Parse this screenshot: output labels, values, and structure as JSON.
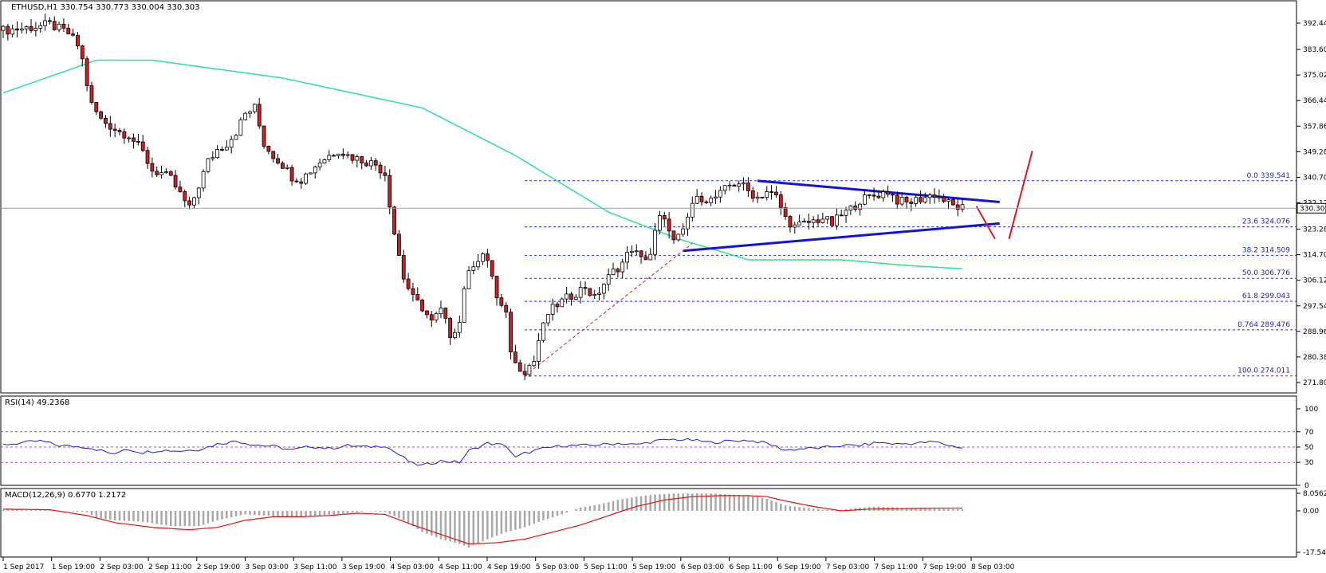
{
  "chart_data": [
    {
      "type": "candlestick",
      "title": "ETHUSD,H1  330.754 330.773 330.004 330.303",
      "last_price": "330.303",
      "ylim": [
        271.8,
        397.0
      ],
      "yticks": [
        "392.440",
        "383.600",
        "375.020",
        "366.440",
        "357.860",
        "349.280",
        "340.700",
        "332.120",
        "323.280",
        "314.700",
        "306.120",
        "297.540",
        "288.960",
        "280.380",
        "271.800"
      ],
      "xticks": [
        "1 Sep 2017",
        "1 Sep 19:00",
        "2 Sep 03:00",
        "2 Sep 11:00",
        "2 Sep 19:00",
        "3 Sep 03:00",
        "3 Sep 11:00",
        "3 Sep 19:00",
        "4 Sep 03:00",
        "4 Sep 11:00",
        "4 Sep 19:00",
        "5 Sep 03:00",
        "5 Sep 11:00",
        "5 Sep 19:00",
        "6 Sep 03:00",
        "6 Sep 11:00",
        "6 Sep 19:00",
        "7 Sep 03:00",
        "7 Sep 11:00",
        "7 Sep 19:00",
        "8 Sep 03:00"
      ],
      "fibonacci": [
        {
          "label": "0.0  339.541",
          "value": 339.541
        },
        {
          "label": "23.6  324.076",
          "value": 324.076
        },
        {
          "label": "38.2  314.509",
          "value": 314.509
        },
        {
          "label": "50.0  306.776",
          "value": 306.776
        },
        {
          "label": "61.8  299.043",
          "value": 299.043
        },
        {
          "label": "0.764  289.476",
          "value": 289.476
        },
        {
          "label": "100.0  274.011",
          "value": 274.011
        }
      ],
      "close_path": [
        [
          0,
          390
        ],
        [
          6,
          391
        ],
        [
          10,
          392
        ],
        [
          14,
          389
        ],
        [
          16,
          385
        ],
        [
          17,
          380
        ],
        [
          18,
          372
        ],
        [
          19,
          365
        ],
        [
          21,
          360
        ],
        [
          23,
          358
        ],
        [
          25,
          356
        ],
        [
          27,
          355
        ],
        [
          28,
          353
        ],
        [
          30,
          349
        ],
        [
          32,
          343
        ],
        [
          34,
          342
        ],
        [
          36,
          340
        ],
        [
          38,
          335
        ],
        [
          40,
          330
        ],
        [
          42,
          338
        ],
        [
          44,
          346
        ],
        [
          46,
          350
        ],
        [
          48,
          352
        ],
        [
          50,
          356
        ],
        [
          52,
          362
        ],
        [
          54,
          364
        ],
        [
          56,
          352
        ],
        [
          58,
          348
        ],
        [
          60,
          345
        ],
        [
          62,
          341
        ],
        [
          64,
          340
        ],
        [
          66,
          343
        ],
        [
          68,
          346
        ],
        [
          70,
          348
        ],
        [
          72,
          350
        ],
        [
          74,
          348
        ],
        [
          76,
          347
        ],
        [
          78,
          346
        ],
        [
          80,
          345
        ],
        [
          82,
          342
        ],
        [
          84,
          322
        ],
        [
          86,
          307
        ],
        [
          88,
          300
        ],
        [
          90,
          297
        ],
        [
          92,
          292
        ],
        [
          94,
          296
        ],
        [
          96,
          288
        ],
        [
          98,
          292
        ],
        [
          99,
          304
        ],
        [
          101,
          312
        ],
        [
          103,
          315
        ],
        [
          105,
          308
        ],
        [
          106,
          300
        ],
        [
          108,
          294
        ],
        [
          109,
          283
        ],
        [
          110,
          278
        ],
        [
          112,
          276
        ],
        [
          114,
          279
        ],
        [
          115,
          286
        ],
        [
          117,
          295
        ],
        [
          119,
          298
        ],
        [
          121,
          300
        ],
        [
          123,
          302
        ],
        [
          125,
          304
        ],
        [
          127,
          300
        ],
        [
          129,
          305
        ],
        [
          131,
          309
        ],
        [
          133,
          312
        ],
        [
          135,
          317
        ],
        [
          137,
          313
        ],
        [
          139,
          315
        ],
        [
          140,
          322
        ],
        [
          141,
          327
        ],
        [
          143,
          324
        ],
        [
          144,
          319
        ],
        [
          146,
          322
        ],
        [
          148,
          332
        ],
        [
          150,
          334
        ],
        [
          152,
          333
        ],
        [
          154,
          335
        ],
        [
          156,
          338
        ],
        [
          158,
          339
        ],
        [
          160,
          336
        ],
        [
          162,
          334
        ],
        [
          164,
          336
        ],
        [
          166,
          334
        ],
        [
          168,
          327
        ],
        [
          170,
          324
        ],
        [
          172,
          325
        ],
        [
          174,
          326
        ],
        [
          176,
          327
        ],
        [
          178,
          325
        ],
        [
          180,
          328
        ],
        [
          182,
          330
        ],
        [
          184,
          333
        ],
        [
          186,
          334
        ],
        [
          188,
          335
        ],
        [
          190,
          336
        ],
        [
          192,
          333
        ],
        [
          194,
          332
        ],
        [
          196,
          333
        ],
        [
          198,
          334
        ],
        [
          200,
          335
        ],
        [
          202,
          333
        ],
        [
          204,
          331
        ],
        [
          206,
          330.3
        ]
      ],
      "ema": [
        [
          0,
          369
        ],
        [
          20,
          380
        ],
        [
          32,
          380
        ],
        [
          60,
          374
        ],
        [
          90,
          364
        ],
        [
          110,
          348
        ],
        [
          130,
          329
        ],
        [
          145,
          320
        ],
        [
          160,
          313
        ],
        [
          180,
          313
        ],
        [
          195,
          311
        ],
        [
          206,
          310
        ]
      ],
      "trendlines": [
        {
          "from": [
            162,
            339.5
          ],
          "to": [
            214,
            332.4
          ]
        },
        {
          "from": [
            146,
            316.0
          ],
          "to": [
            214,
            325.2
          ]
        }
      ],
      "support_dashed": {
        "from": [
          112,
          274
        ],
        "to": [
          148,
          318.5
        ]
      },
      "red_arrows": [
        {
          "from": [
            209,
            331
          ],
          "to": [
            213,
            320
          ]
        },
        {
          "from": [
            216,
            320
          ],
          "to": [
            221,
            349.5
          ]
        }
      ]
    },
    {
      "type": "line",
      "title": "RSI(14) 49.2368",
      "ylim": [
        0,
        100
      ],
      "levels": [
        70,
        50,
        30
      ],
      "yticks": [
        "100",
        "70",
        "50",
        "30",
        "0"
      ],
      "values": [
        [
          0,
          53
        ],
        [
          8,
          58
        ],
        [
          12,
          52
        ],
        [
          18,
          50
        ],
        [
          22,
          44
        ],
        [
          24,
          40
        ],
        [
          26,
          48
        ],
        [
          30,
          43
        ],
        [
          34,
          46
        ],
        [
          38,
          45
        ],
        [
          42,
          47
        ],
        [
          46,
          54
        ],
        [
          50,
          58
        ],
        [
          54,
          53
        ],
        [
          58,
          51
        ],
        [
          62,
          46
        ],
        [
          66,
          51
        ],
        [
          70,
          48
        ],
        [
          74,
          52
        ],
        [
          78,
          50
        ],
        [
          82,
          52
        ],
        [
          86,
          36
        ],
        [
          88,
          28
        ],
        [
          90,
          26
        ],
        [
          94,
          32
        ],
        [
          98,
          30
        ],
        [
          100,
          45
        ],
        [
          104,
          55
        ],
        [
          108,
          52
        ],
        [
          110,
          36
        ],
        [
          112,
          42
        ],
        [
          116,
          48
        ],
        [
          120,
          52
        ],
        [
          124,
          52
        ],
        [
          128,
          53
        ],
        [
          132,
          55
        ],
        [
          136,
          53
        ],
        [
          140,
          58
        ],
        [
          144,
          60
        ],
        [
          148,
          59
        ],
        [
          152,
          56
        ],
        [
          156,
          58
        ],
        [
          160,
          59
        ],
        [
          164,
          55
        ],
        [
          168,
          46
        ],
        [
          172,
          48
        ],
        [
          176,
          49
        ],
        [
          180,
          52
        ],
        [
          184,
          52
        ],
        [
          188,
          56
        ],
        [
          192,
          54
        ],
        [
          196,
          55
        ],
        [
          200,
          57
        ],
        [
          204,
          51
        ],
        [
          206,
          49.2
        ]
      ]
    },
    {
      "type": "bar+line",
      "title": "MACD(12,26,9) 0.6770 1.2172",
      "ylim": [
        -17.5449,
        8.0562
      ],
      "yticks": [
        "8.0562",
        "0.00",
        "-17.5449"
      ],
      "histogram": [
        [
          0,
          0.6
        ],
        [
          10,
          0.2
        ],
        [
          18,
          -0.5
        ],
        [
          20,
          -3
        ],
        [
          24,
          -4
        ],
        [
          30,
          -4.6
        ],
        [
          36,
          -6.5
        ],
        [
          42,
          -6.5
        ],
        [
          46,
          -4
        ],
        [
          52,
          -1.5
        ],
        [
          56,
          -2
        ],
        [
          62,
          -2.6
        ],
        [
          68,
          -2
        ],
        [
          74,
          -1
        ],
        [
          78,
          0
        ],
        [
          82,
          -0.5
        ],
        [
          86,
          -4
        ],
        [
          90,
          -9
        ],
        [
          94,
          -12
        ],
        [
          98,
          -14
        ],
        [
          100,
          -15.5
        ],
        [
          104,
          -12
        ],
        [
          108,
          -9
        ],
        [
          112,
          -7
        ],
        [
          116,
          -4
        ],
        [
          120,
          -1.5
        ],
        [
          124,
          1.5
        ],
        [
          128,
          3
        ],
        [
          132,
          5
        ],
        [
          136,
          6.5
        ],
        [
          140,
          7.5
        ],
        [
          144,
          8
        ],
        [
          148,
          8
        ],
        [
          152,
          8
        ],
        [
          156,
          7.5
        ],
        [
          160,
          7
        ],
        [
          164,
          5.5
        ],
        [
          168,
          2.5
        ],
        [
          172,
          1.5
        ],
        [
          176,
          0.5
        ],
        [
          180,
          0.5
        ],
        [
          184,
          1.5
        ],
        [
          188,
          2
        ],
        [
          192,
          1.5
        ],
        [
          196,
          1
        ],
        [
          200,
          1
        ],
        [
          204,
          0.8
        ],
        [
          206,
          0.68
        ]
      ],
      "signal": [
        [
          0,
          0.8
        ],
        [
          10,
          0.5
        ],
        [
          18,
          -2
        ],
        [
          24,
          -5
        ],
        [
          32,
          -7
        ],
        [
          40,
          -8
        ],
        [
          46,
          -7
        ],
        [
          52,
          -4
        ],
        [
          58,
          -2.5
        ],
        [
          64,
          -2.5
        ],
        [
          70,
          -2
        ],
        [
          76,
          -1
        ],
        [
          82,
          -1.5
        ],
        [
          88,
          -6
        ],
        [
          94,
          -10
        ],
        [
          100,
          -14
        ],
        [
          106,
          -13.5
        ],
        [
          112,
          -12
        ],
        [
          118,
          -9
        ],
        [
          124,
          -6
        ],
        [
          130,
          -2
        ],
        [
          136,
          2
        ],
        [
          142,
          5
        ],
        [
          148,
          6.5
        ],
        [
          154,
          7
        ],
        [
          160,
          7
        ],
        [
          164,
          6.5
        ],
        [
          168,
          4.5
        ],
        [
          174,
          2
        ],
        [
          180,
          0
        ],
        [
          186,
          0.8
        ],
        [
          192,
          1
        ],
        [
          200,
          1.2
        ],
        [
          206,
          1.22
        ]
      ]
    }
  ],
  "colors": {
    "bull": "#ffffff",
    "bear": "#cc1f1f",
    "ema": "#2fe09a",
    "trend": "#1414d8",
    "fib": "#2b2bd6",
    "rsi": "#1f1fcf",
    "level": "#cc33cc",
    "hist": "#a8a8a8",
    "signal": "#e01414",
    "arrow": "#e0141e"
  }
}
